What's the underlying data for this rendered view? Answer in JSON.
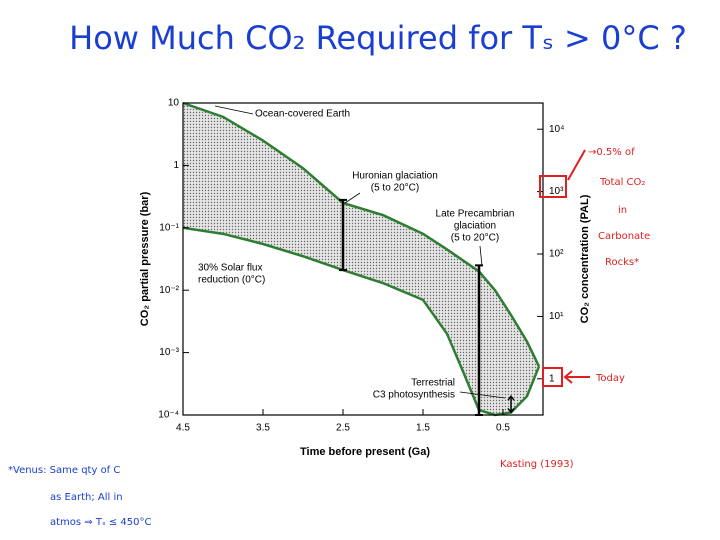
{
  "title": "How Much CO₂ Required for Tₛ > 0°C ?",
  "chart_data": {
    "type": "band",
    "x": [
      4.5,
      4,
      3.5,
      3,
      2.5,
      2,
      1.5,
      1.2,
      1,
      0.8,
      0.6,
      0.4,
      0.2,
      0.05
    ],
    "series": [
      {
        "color": "#2e7d32",
        "values": [
          10,
          6,
          2.5,
          0.9,
          0.25,
          0.16,
          0.08,
          0.045,
          0.03,
          0.02,
          0.01,
          0.004,
          0.0015,
          0.0006
        ]
      },
      {
        "color": "#2e7d32",
        "values": [
          0.1,
          0.08,
          0.055,
          0.035,
          0.021,
          0.013,
          0.007,
          0.002,
          0.0005,
          0.00012,
          0.0001,
          0.00011,
          0.0002,
          0.0006
        ]
      }
    ],
    "ranges": [
      {
        "x": 2.5,
        "low": 0.021,
        "high": 0.28
      },
      {
        "x": 0.8,
        "low": 0.0001,
        "high": 0.025
      },
      {
        "x": 0.4,
        "low": 0.00011,
        "high": 0.0002
      }
    ],
    "annotations": [
      {
        "lines": [
          "Ocean-covered Earth"
        ]
      },
      {
        "lines": [
          "Huronian glaciation",
          "(5 to 20°C)"
        ]
      },
      {
        "lines": [
          "Late Precambrian",
          "glaciation",
          "(5 to 20°C)"
        ]
      },
      {
        "lines": [
          "30% Solar flux",
          "reduction (0°C)"
        ]
      },
      {
        "lines": [
          "Terrestrial",
          "C3 photosynthesis"
        ]
      }
    ],
    "xlabel": "Time before present (Ga)",
    "ylabel": "CO₂ partial pressure (bar)",
    "y2label": "CO₂ concentration (PAL)",
    "xlim": [
      4.5,
      0
    ],
    "xticks": [
      4.5,
      3.5,
      2.5,
      1.5,
      0.5
    ],
    "ylim": [
      0.0001,
      10
    ],
    "ylog": true,
    "yticks": [
      {
        "value": 10,
        "label": "10"
      },
      1,
      {
        "value": 0.1,
        "label": "10⁻¹"
      },
      {
        "value": 0.01,
        "label": "10⁻²"
      },
      {
        "value": 0.001,
        "label": "10⁻³"
      },
      {
        "value": 0.0001,
        "label": "10⁻⁴"
      }
    ],
    "y2lim": [
      0.263,
      26300
    ],
    "y2log": true,
    "y2ticks": [
      1,
      {
        "value": 10,
        "label": "10¹"
      },
      {
        "value": 100,
        "label": "10²"
      },
      {
        "value": 1000,
        "label": "10³"
      },
      {
        "value": 10000,
        "label": "10⁴"
      }
    ]
  },
  "notes": {
    "right": [
      "→0.5% of",
      "Total CO₂",
      "in",
      "Carbonate",
      "Rocks*"
    ],
    "today": "Today",
    "citation": "Kasting (1993)",
    "venus": [
      "*Venus: Same qty of C",
      "as Earth; All in",
      "atmos ⇒ Tₛ ≤ 450°C"
    ]
  }
}
